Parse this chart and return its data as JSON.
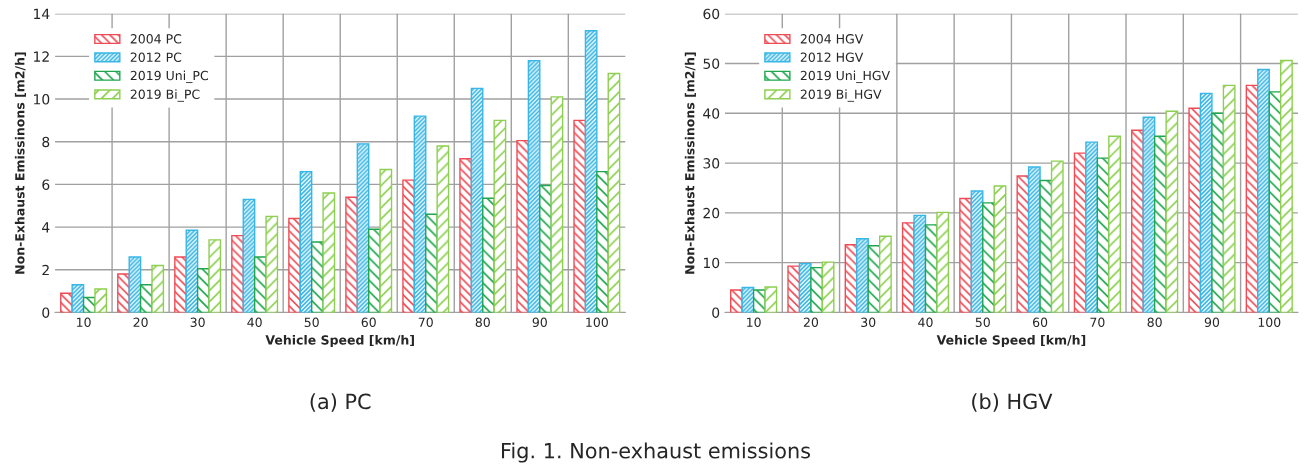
{
  "chart_data": [
    {
      "type": "bar",
      "subtitle": "(a) PC",
      "xlabel": "Vehicle Speed [km/h]",
      "ylabel": "Non-Exhaust Emissinons [m2/h]",
      "categories": [
        "10",
        "20",
        "30",
        "40",
        "50",
        "60",
        "70",
        "80",
        "90",
        "100"
      ],
      "series": [
        {
          "name": "2004 PC",
          "color": "#ee4b55",
          "values": [
            0.9,
            1.8,
            2.6,
            3.6,
            4.4,
            5.4,
            6.2,
            7.2,
            8.05,
            9.0
          ]
        },
        {
          "name": "2012 PC",
          "color": "#38b6e6",
          "values": [
            1.3,
            2.6,
            3.85,
            5.3,
            6.6,
            7.9,
            9.2,
            10.5,
            11.8,
            13.2
          ]
        },
        {
          "name": "2019 Uni_PC",
          "color": "#1fa64e",
          "values": [
            0.7,
            1.3,
            2.05,
            2.6,
            3.3,
            3.9,
            4.6,
            5.35,
            5.95,
            6.6
          ]
        },
        {
          "name": "2019 Bi_PC",
          "color": "#8dcf50",
          "values": [
            1.1,
            2.2,
            3.4,
            4.5,
            5.6,
            6.7,
            7.8,
            9.0,
            10.1,
            11.2
          ]
        }
      ],
      "ylim": [
        0,
        14
      ],
      "yticks": [
        0,
        2,
        4,
        6,
        8,
        10,
        12,
        14
      ],
      "grid": true,
      "legend": "top left"
    },
    {
      "type": "bar",
      "subtitle": "(b) HGV",
      "xlabel": "Vehicle Speed [km/h]",
      "ylabel": "Non-Exhaust Emissinons [m2/h]",
      "categories": [
        "10",
        "20",
        "30",
        "40",
        "50",
        "60",
        "70",
        "80",
        "90",
        "100"
      ],
      "series": [
        {
          "name": "2004 HGV",
          "color": "#ee4b55",
          "values": [
            4.5,
            9.3,
            13.6,
            18.0,
            22.9,
            27.4,
            32.0,
            36.6,
            41.0,
            45.6
          ]
        },
        {
          "name": "2012 HGV",
          "color": "#38b6e6",
          "values": [
            5.0,
            9.8,
            14.8,
            19.5,
            24.4,
            29.2,
            34.2,
            39.2,
            44.0,
            48.8
          ]
        },
        {
          "name": "2019 Uni_HGV",
          "color": "#1fa64e",
          "values": [
            4.5,
            9.0,
            13.4,
            17.6,
            22.0,
            26.5,
            31.0,
            35.4,
            40.0,
            44.3
          ]
        },
        {
          "name": "2019 Bi_HGV",
          "color": "#8dcf50",
          "values": [
            5.1,
            10.1,
            15.3,
            20.1,
            25.4,
            30.4,
            35.4,
            40.4,
            45.6,
            50.6
          ]
        }
      ],
      "ylim": [
        0,
        60
      ],
      "yticks": [
        0,
        10,
        20,
        30,
        40,
        50,
        60
      ],
      "grid": true,
      "legend": "top left",
      "annotations": [
        "Fig. 1. Non-exhaust emissions"
      ]
    }
  ]
}
